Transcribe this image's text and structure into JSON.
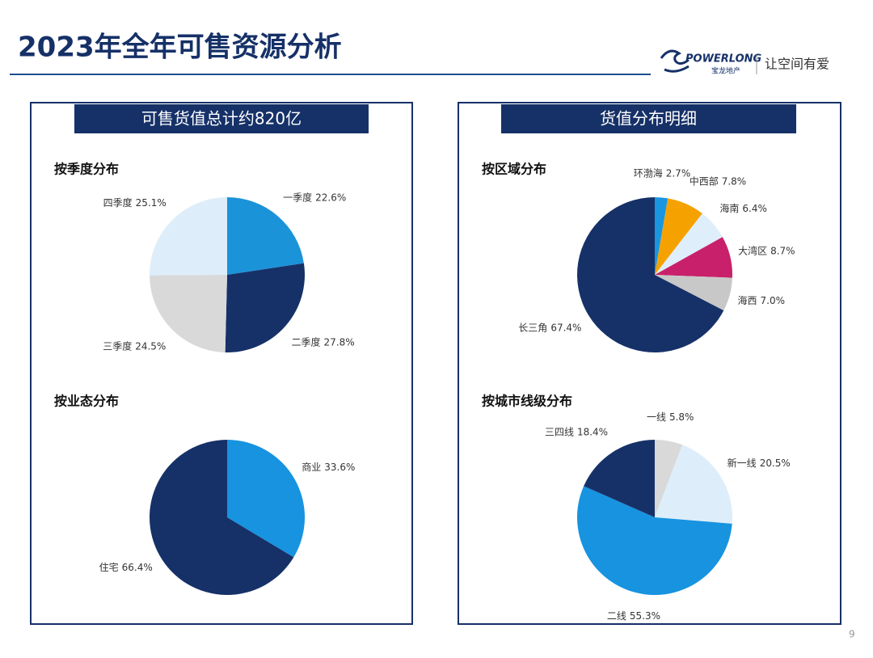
{
  "title": "2023年全年可售资源分析",
  "logo": {
    "brand": "POWERLONG",
    "brand_cn": "宝龙地产",
    "slogan": "让空间有爱"
  },
  "panels": [
    "可售货值总计约820亿",
    "货值分布明细"
  ],
  "page_number": "9",
  "chart_data": [
    {
      "type": "pie",
      "title": "按季度分布",
      "categories": [
        "一季度",
        "二季度",
        "三季度",
        "四季度"
      ],
      "values": [
        22.6,
        27.8,
        24.5,
        25.1
      ],
      "value_labels": [
        "22.6%",
        "27.8%",
        "24.5%",
        "25.1%"
      ],
      "colors": [
        "#1b93d9",
        "#163168",
        "#d9d9d9",
        "#ddeefa"
      ]
    },
    {
      "type": "pie",
      "title": "按业态分布",
      "categories": [
        "商业",
        "住宅"
      ],
      "values": [
        33.6,
        66.4
      ],
      "value_labels": [
        "33.6%",
        "66.4%"
      ],
      "colors": [
        "#1793e0",
        "#163168"
      ]
    },
    {
      "type": "pie",
      "title": "按区域分布",
      "categories": [
        "环渤海",
        "中西部",
        "海南",
        "大湾区",
        "海西",
        "长三角"
      ],
      "values": [
        2.7,
        7.8,
        6.4,
        8.7,
        7.0,
        67.4
      ],
      "value_labels": [
        "2.7%",
        "7.8%",
        "6.4%",
        "8.7%",
        "7.0%",
        "67.4%"
      ],
      "colors": [
        "#1a96e0",
        "#f5a200",
        "#deeefa",
        "#c8206a",
        "#c8c8c8",
        "#163168"
      ]
    },
    {
      "type": "pie",
      "title": "按城市线级分布",
      "categories": [
        "一线",
        "新一线",
        "二线",
        "三四线"
      ],
      "values": [
        5.8,
        20.5,
        55.3,
        18.4
      ],
      "value_labels": [
        "5.8%",
        "20.5%",
        "55.3%",
        "18.4%"
      ],
      "colors": [
        "#d9d9d9",
        "#ddeefa",
        "#1793e0",
        "#163168"
      ]
    }
  ]
}
